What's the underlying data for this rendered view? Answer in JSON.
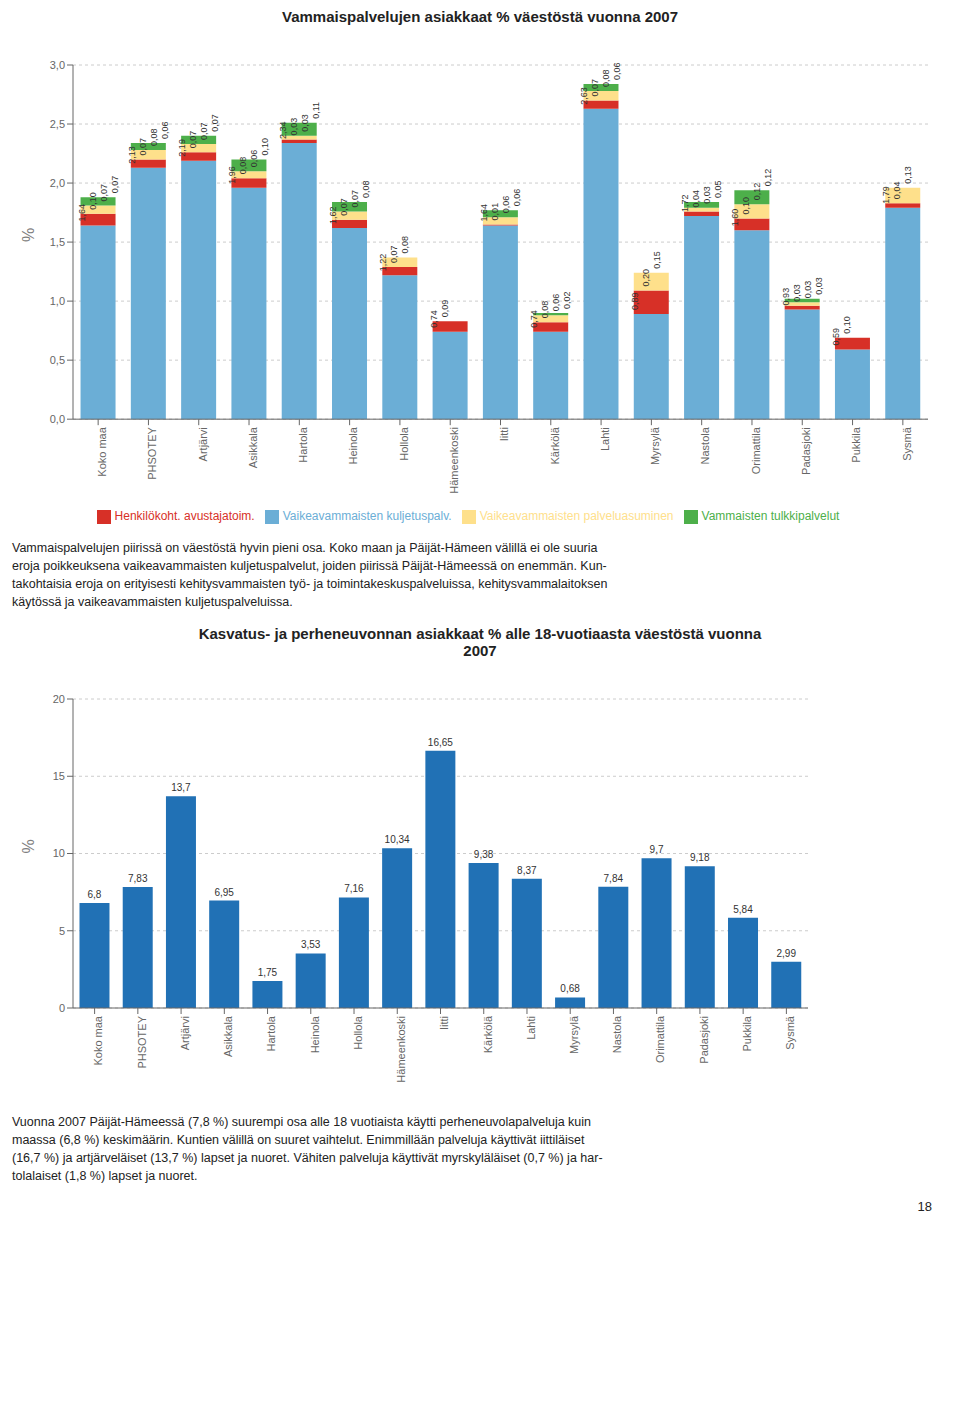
{
  "chart_data": [
    {
      "type": "bar",
      "title": "Vammaispalvelujen asiakkaat % väestöstä vuonna 2007",
      "stacked": true,
      "categories": [
        "Koko maa",
        "PHSOTEY",
        "Artjärvi",
        "Asikkala",
        "Hartola",
        "Heinola",
        "Hollola",
        "Hämeenkoski",
        "Iitti",
        "Kärkölä",
        "Lahti",
        "Myrsylä",
        "Nastola",
        "Orimattila",
        "Padasjoki",
        "Pukkila",
        "Sysmä"
      ],
      "series": [
        {
          "name": "Vaikeavammaisten kuljetuspalv.",
          "color": "#6baed6",
          "values": [
            1.64,
            2.13,
            2.19,
            1.96,
            2.34,
            1.62,
            1.22,
            0.74,
            1.64,
            0.74,
            2.63,
            0.89,
            1.72,
            1.6,
            0.93,
            0.59,
            1.79
          ],
          "value_labels": [
            "1,64",
            "2,13",
            "2,19",
            "1,96",
            "2,34",
            "1,62",
            "1,22",
            "0,74",
            "1,64",
            "0,74",
            "2,63",
            "0,89",
            "1,72",
            "1,60",
            "0,93",
            "0,59",
            "1,79"
          ]
        },
        {
          "name": "Henkilökoht. avustajatoim.",
          "color": "#d73027",
          "values": [
            0.1,
            0.07,
            0.07,
            0.08,
            0.03,
            0.07,
            0.07,
            0.09,
            0.01,
            0.08,
            0.07,
            0.2,
            0.04,
            0.1,
            0.03,
            0.1,
            0.04
          ],
          "value_labels": [
            "0,10",
            "0,07",
            "0,07",
            "0,08",
            "0,03",
            "0,07",
            "0,07",
            "0,09",
            "0,01",
            "0,08",
            "0,07",
            "0,20",
            "0,04",
            "0,10",
            "0,03",
            "0,10",
            "0,04"
          ]
        },
        {
          "name": "Vaikeavammaisten palveluasuminen",
          "color": "#fee08b",
          "values": [
            0.07,
            0.08,
            0.07,
            0.06,
            0.03,
            0.07,
            0.08,
            0.0,
            0.06,
            0.06,
            0.08,
            0.15,
            0.03,
            0.12,
            0.03,
            0.0,
            0.13
          ],
          "value_labels": [
            "0,07",
            "0,08",
            "0,07",
            "0,06",
            "0,03",
            "0,07",
            "0,08",
            null,
            "0,06",
            "0,06",
            "0,08",
            "0,15",
            "0,03",
            "0,12",
            "0,03",
            null,
            "0,13"
          ]
        },
        {
          "name": "Vammaisten tulkkipalvelut",
          "color": "#4daf4a",
          "values": [
            0.07,
            0.06,
            0.07,
            0.1,
            0.11,
            0.08,
            0.0,
            0.0,
            0.06,
            0.02,
            0.06,
            0.0,
            0.05,
            0.12,
            0.03,
            0.0,
            0.0
          ],
          "value_labels": [
            "0,07",
            "0,06",
            "0,07",
            "0,10",
            "0,11",
            "0,08",
            null,
            null,
            "0,06",
            "0,02",
            "0,06",
            null,
            "0,05",
            "0,12",
            "0,03",
            null,
            null
          ]
        }
      ],
      "ylabel": "%",
      "ylim": [
        0,
        3.0
      ],
      "yticks": [
        {
          "value": 0.0,
          "label": "0,0"
        },
        {
          "value": 0.5,
          "label": "0,5"
        },
        {
          "value": 1.0,
          "label": "1,0"
        },
        {
          "value": 1.5,
          "label": "1,5"
        },
        {
          "value": 2.0,
          "label": "2,0"
        },
        {
          "value": 2.5,
          "label": "2,5"
        },
        {
          "value": 3.0,
          "label": "3,0"
        }
      ],
      "grid": true,
      "legend": "bottom",
      "data_labels": true,
      "annotations": [
        "Vammaispalvelujen piirissä on väestöstä hyvin pieni osa. Koko maan ja Päijät-Hämeen välillä ei ole suuria\neroja poikkeuksena vaikeavammaisten kuljetuspalvelut, joiden piirissä Päijät-Hämeessä on enemmän. Kun-\ntakohtaisia eroja on erityisesti kehitysvammaisten työ- ja toimintakeskuspalveluissa, kehitysvammalaitoksen\nkäytössä ja vaikeavammaisten kuljetuspalveluissa."
      ]
    },
    {
      "type": "bar",
      "title": "Kasvatus- ja perheneuvonnan asiakkaat % alle 18-vuotiaasta väestöstä vuonna\n2007",
      "categories": [
        "Koko maa",
        "PHSOTEY",
        "Artjärvi",
        "Asikkala",
        "Hartola",
        "Heinola",
        "Hollola",
        "Hämeenkoski",
        "Iitti",
        "Kärkölä",
        "Lahti",
        "Myrsylä",
        "Nastola",
        "Orimattila",
        "Padasjoki",
        "Pukkila",
        "Sysmä"
      ],
      "values": [
        6.8,
        7.83,
        13.7,
        6.95,
        1.75,
        3.53,
        7.16,
        10.34,
        16.65,
        9.38,
        8.37,
        0.68,
        7.84,
        9.7,
        9.18,
        5.84,
        2.99
      ],
      "value_labels": [
        "6,8",
        "7,83",
        "13,7",
        "6,95",
        "1,75",
        "3,53",
        "7,16",
        "10,34",
        "16,65",
        "9,38",
        "8,37",
        "0,68",
        "7,84",
        "9,7",
        "9,18",
        "5,84",
        "2,99"
      ],
      "color": "#2171b5",
      "ylabel": "%",
      "ylim": [
        0,
        20
      ],
      "yticks": [
        0,
        5,
        10,
        15,
        20
      ],
      "grid": true,
      "data_labels": true,
      "annotations": [
        "Vuonna 2007 Päijät-Hämeessä (7,8 %) suurempi osa alle 18 vuotiaista käytti perheneuvolapalveluja kuin\nmaassa (6,8 %) keskimäärin. Kuntien välillä on suuret vaihtelut. Enimmillään palveluja käyttivät iittiläiset\n(16,7 %) ja artjärveläiset (13,7 %) lapset ja nuoret. Vähiten palveluja käyttivät myrskyläläiset (0,7 %) ja har-\ntolalaiset (1,8 %) lapset ja nuoret.",
        "18"
      ]
    }
  ]
}
